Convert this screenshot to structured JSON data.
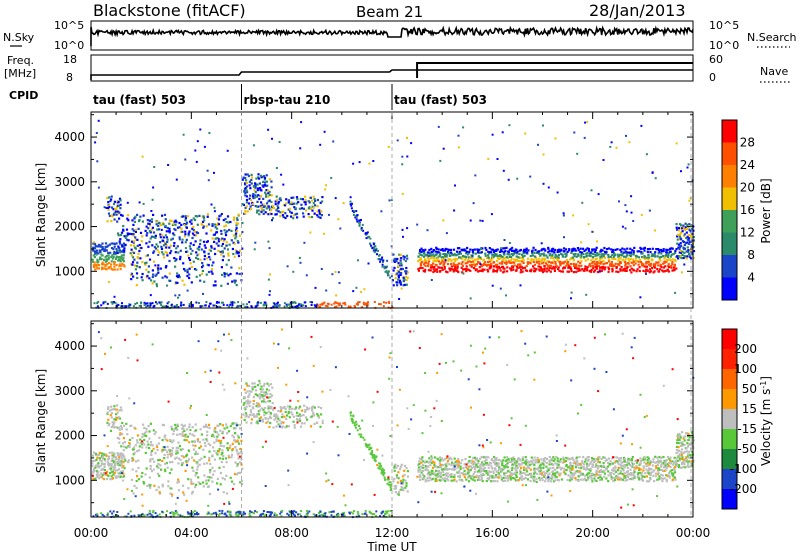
{
  "header": {
    "station": "Blackstone (fitACF)",
    "beam": "Beam 21",
    "date": "28/Jan/2013"
  },
  "strips": {
    "nsky": {
      "label": "N.Sky",
      "ticks": [
        "10^5",
        "10^0"
      ]
    },
    "nsearch": {
      "label": "N.Search",
      "ticks": [
        "10^5",
        "10^0"
      ]
    },
    "freq": {
      "label": "Freq.",
      "unit": "[MHz]",
      "ticks": [
        "18",
        "8"
      ]
    },
    "nave": {
      "label": "Nave",
      "ticks": [
        "60",
        "0"
      ]
    },
    "cpid": {
      "label": "CPID"
    }
  },
  "cpid_segments": [
    {
      "label": "tau (fast) 503",
      "start_hr": 0,
      "end_hr": 6
    },
    {
      "label": "rbsp-tau 210",
      "start_hr": 6,
      "end_hr": 12
    },
    {
      "label": "tau (fast) 503",
      "start_hr": 12,
      "end_hr": 24
    }
  ],
  "chart_data": [
    {
      "type": "heatmap",
      "ylabel": "Slant Range [km]",
      "xlabel": "",
      "x_range_hr": [
        0,
        24
      ],
      "ylim": [
        180,
        4560
      ],
      "yticks": [
        1000,
        2000,
        3000,
        4000
      ],
      "colorbar": {
        "title": "Power [dB]",
        "ticks": [
          "4",
          "8",
          "12",
          "16",
          "20",
          "24",
          "28"
        ],
        "colors": [
          "#0000ff",
          "#1b45c8",
          "#2a8a6a",
          "#3fa05a",
          "#f0c000",
          "#ff8000",
          "#ff5000",
          "#ff0000"
        ]
      }
    },
    {
      "type": "heatmap",
      "ylabel": "Slant Range [km]",
      "xlabel": "Time UT",
      "x_range_hr": [
        0,
        24
      ],
      "xticks": [
        "00:00",
        "04:00",
        "08:00",
        "12:00",
        "16:00",
        "20:00",
        "00:00"
      ],
      "ylim": [
        180,
        4560
      ],
      "yticks": [
        1000,
        2000,
        3000,
        4000
      ],
      "colorbar": {
        "title": "Velocity [m s-1]",
        "ticks": [
          "200",
          "100",
          "50",
          "15",
          "-15",
          "-50",
          "-100",
          "-200"
        ],
        "colors": [
          "#0000ff",
          "#1b45c8",
          "#1e8a3e",
          "#58c838",
          "#bebebe",
          "#ff9900",
          "#ff6600",
          "#ff2200",
          "#ff0000"
        ]
      }
    }
  ]
}
